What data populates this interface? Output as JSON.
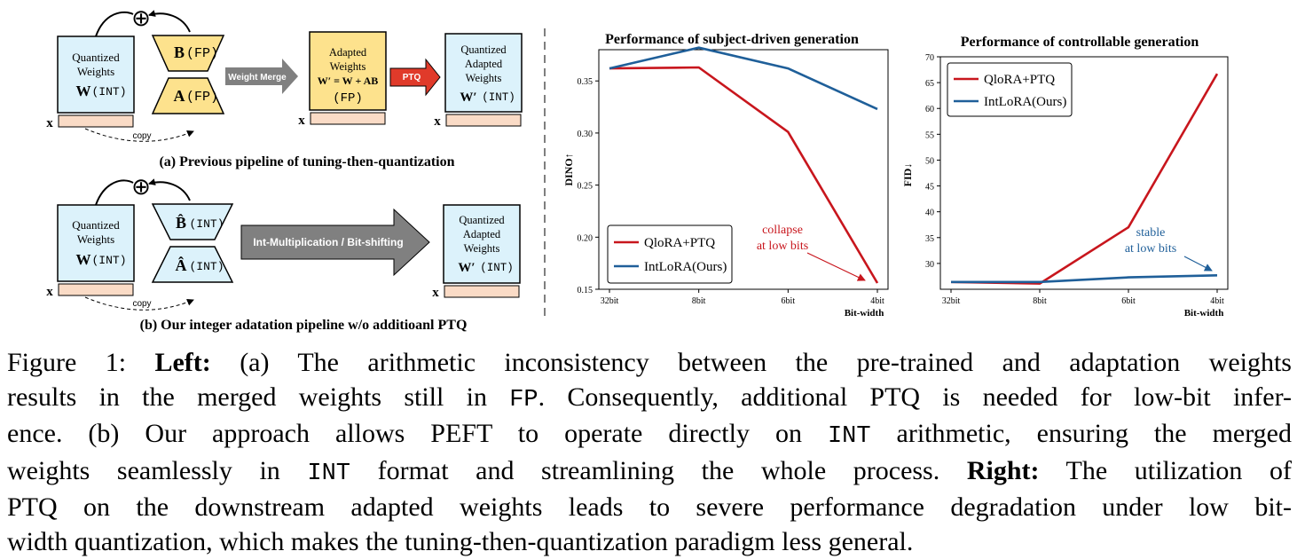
{
  "pipeline_a": {
    "left_box": {
      "line1": "Quantized",
      "line2": "Weights",
      "symbol": "W",
      "type": "(INT)"
    },
    "b_label": "B",
    "b_type": "(FP)",
    "a_label": "A",
    "a_type": "(FP)",
    "merge_label": "Weight Merge",
    "adapted_box": {
      "line1": "Adapted",
      "line2": "Weights",
      "formula": "W′ = W + AB",
      "type": "(FP)"
    },
    "ptq_label": "PTQ",
    "right_box": {
      "line1": "Quantized",
      "line2": "Adapted",
      "line3": "Weights",
      "symbol": "W′",
      "type": "(INT)"
    },
    "x_label": "x",
    "x_label2": "x",
    "copy_label": "copy",
    "plus": "⊕",
    "caption": "(a) Previous pipeline of tuning-then-quantization"
  },
  "pipeline_b": {
    "left_box": {
      "line1": "Quantized",
      "line2": "Weights",
      "symbol": "W",
      "type": "(INT)"
    },
    "b_label": "B̂",
    "b_type": "(INT)",
    "a_label": "Â",
    "a_type": "(INT)",
    "arrow_label": "Int-Multiplication / Bit-shifting",
    "right_box": {
      "line1": "Quantized",
      "line2": "Adapted",
      "line3": "Weights",
      "symbol": "W′",
      "type": "(INT)"
    },
    "x_label": "x",
    "x_label2": "x",
    "copy_label": "copy",
    "plus": "⊕",
    "caption": "(b) Our integer adatation pipeline w/o additioanl PTQ"
  },
  "colors": {
    "red": "#c8161d",
    "blue": "#1f5f99",
    "box_blue": "#dcf2fb",
    "box_yellow": "#fde28d",
    "input_pink": "#fadbc6",
    "arrow_gray": "#808080",
    "ptq_red": "#e03a2a"
  },
  "chart_data": [
    {
      "type": "line",
      "title": "Performance of subject-driven generation",
      "xlabel": "Bit-width",
      "ylabel": "DINO↑",
      "categories": [
        "32bit",
        "8bit",
        "6bit",
        "4bit"
      ],
      "ylim": [
        0.15,
        0.38
      ],
      "yticks": [
        "0.15",
        "0.20",
        "0.25",
        "0.30",
        "0.35"
      ],
      "series": [
        {
          "name": "QloRA+PTQ",
          "color": "#c8161d",
          "values": [
            0.362,
            0.363,
            0.301,
            0.156
          ]
        },
        {
          "name": "IntLoRA(Ours)",
          "color": "#1f5f99",
          "values": [
            0.362,
            0.382,
            0.362,
            0.323
          ]
        }
      ],
      "legend": "bottom-left",
      "annotation": {
        "line1": "collapse",
        "line2": "at low bits",
        "color": "#c8161d"
      }
    },
    {
      "type": "line",
      "title": "Performance of controllable generation",
      "xlabel": "Bit-width",
      "ylabel": "FID↓",
      "categories": [
        "32bit",
        "8bit",
        "6bit",
        "4bit"
      ],
      "ylim": [
        25,
        70
      ],
      "yticks": [
        "30",
        "35",
        "40",
        "45",
        "50",
        "55",
        "60",
        "65",
        "70"
      ],
      "series": [
        {
          "name": "QloRA+PTQ",
          "color": "#c8161d",
          "values": [
            26.4,
            26.1,
            37.0,
            66.7
          ]
        },
        {
          "name": "IntLoRA(Ours)",
          "color": "#1f5f99",
          "values": [
            26.4,
            26.4,
            27.3,
            27.7
          ]
        }
      ],
      "legend": "top-left",
      "annotation": {
        "line1": "stable",
        "line2": "at low bits",
        "color": "#1f5f99"
      }
    }
  ],
  "caption": {
    "l1_a": "Figure 1: ",
    "l1_b": "Left:",
    "l1_c": " (a) The arithmetic inconsistency between the pre-trained and adaptation weights",
    "l2_a": "results in the merged weights still in ",
    "l2_b": "FP",
    "l2_c": ". Consequently, additional PTQ is needed for low-bit infer-",
    "l3_a": "ence. (b) Our approach allows PEFT to operate directly on ",
    "l3_b": "INT",
    "l3_c": " arithmetic, ensuring the merged",
    "l4_a": "weights seamlessly in ",
    "l4_b": "INT",
    "l4_c": " format and streamlining the whole process. ",
    "l4_d": "Right:",
    "l4_e": " The utilization of",
    "l5": "PTQ on the downstream adapted weights leads to severe performance degradation under low bit-",
    "l6": "width quantization, which makes the tuning-then-quantization paradigm less general."
  }
}
